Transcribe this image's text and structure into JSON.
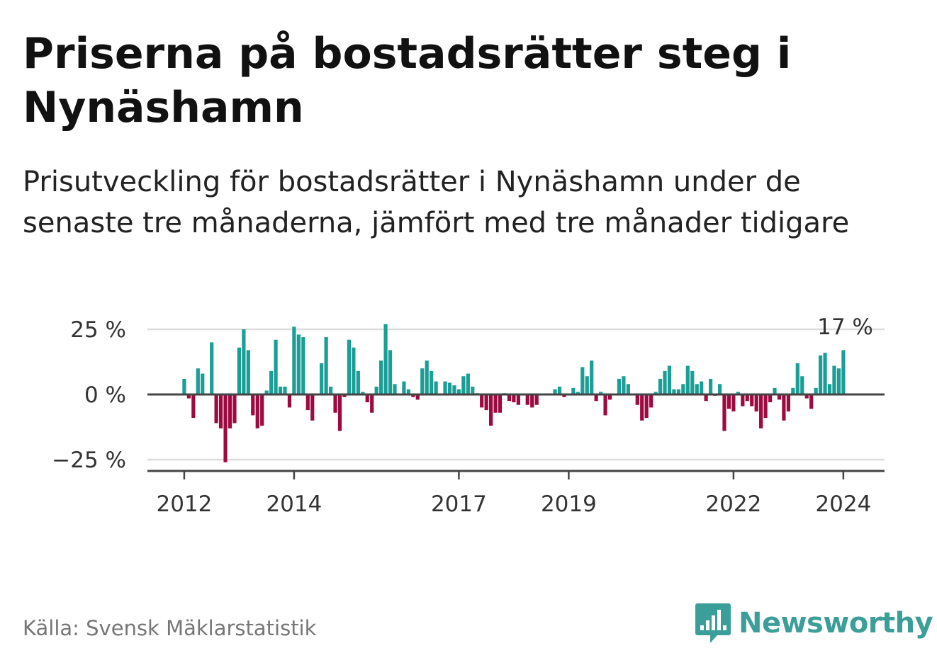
{
  "title": "Priserna på bostadsrätter steg i Nynäshamn",
  "subtitle": "Prisutveckling för bostadsrätter i Nynäshamn under de senaste tre månaderna, jämfört med tre månader tidigare",
  "source": "Källa: Svensk Mäklarstatistik",
  "brand": {
    "name": "Newsworthy",
    "icon": "newsworthy-logo-icon",
    "color": "#3c9e98"
  },
  "colors": {
    "positive": "#1a9e96",
    "negative": "#9c0a40",
    "grid": "#dddddd",
    "axis": "#444444"
  },
  "chart_data": {
    "type": "bar",
    "title": "Priserna på bostadsrätter steg i Nynäshamn",
    "xlabel": "",
    "ylabel": "",
    "unit": "%",
    "ylim": [
      -30,
      27
    ],
    "y_ticks": [
      {
        "value": 25,
        "label": "25 %"
      },
      {
        "value": 0,
        "label": "0 %"
      },
      {
        "value": -25,
        "label": "−25 %"
      }
    ],
    "x_ticks": [
      {
        "value": 2012.0,
        "label": "2012"
      },
      {
        "value": 2014.0,
        "label": "2014"
      },
      {
        "value": 2017.0,
        "label": "2017"
      },
      {
        "value": 2019.0,
        "label": "2019"
      },
      {
        "value": 2022.0,
        "label": "2022"
      },
      {
        "value": 2024.0,
        "label": "2024"
      }
    ],
    "x_range": [
      2011.33,
      2024.75
    ],
    "start": {
      "year": 2012,
      "month": 1
    },
    "last_value_label": "17 %",
    "grid": true,
    "values": [
      6,
      -1.5,
      -9,
      10,
      8,
      0,
      20,
      -11,
      -13,
      -26,
      -13,
      -11,
      18,
      25,
      17,
      -8,
      -13,
      -12,
      1.5,
      9,
      21,
      3,
      3,
      -5,
      26,
      23,
      22,
      -6,
      -10,
      0,
      12,
      22,
      3,
      -7,
      -14,
      -1,
      21,
      18,
      9,
      1,
      -3,
      -7,
      3,
      13,
      27,
      17,
      4,
      0,
      5,
      2,
      -1,
      -2,
      10,
      13,
      9,
      5,
      0,
      5,
      4.5,
      3.5,
      2,
      7,
      8,
      3,
      0.5,
      -5,
      -6,
      -12,
      -7,
      -7,
      0.5,
      -2.5,
      -3,
      -4,
      0,
      -4,
      -5,
      -4,
      0,
      0,
      0,
      2,
      3,
      -1,
      0,
      2.5,
      1,
      10.5,
      7,
      13,
      -2.5,
      1,
      -8,
      -2,
      0,
      6,
      7,
      4,
      0,
      -4,
      -10,
      -9,
      -5,
      1,
      6,
      9,
      11,
      2,
      2,
      4,
      11,
      9,
      4,
      5,
      -2.5,
      6,
      -0.5,
      4,
      -14,
      -5.5,
      -6.5,
      1,
      -4.5,
      -2.5,
      -4.5,
      -6.5,
      -13,
      -9,
      -3,
      2.5,
      -2,
      -10,
      -6.5,
      2.5,
      12,
      7,
      -1.5,
      -5.5,
      2.5,
      15,
      16,
      4,
      11,
      10,
      17
    ]
  }
}
